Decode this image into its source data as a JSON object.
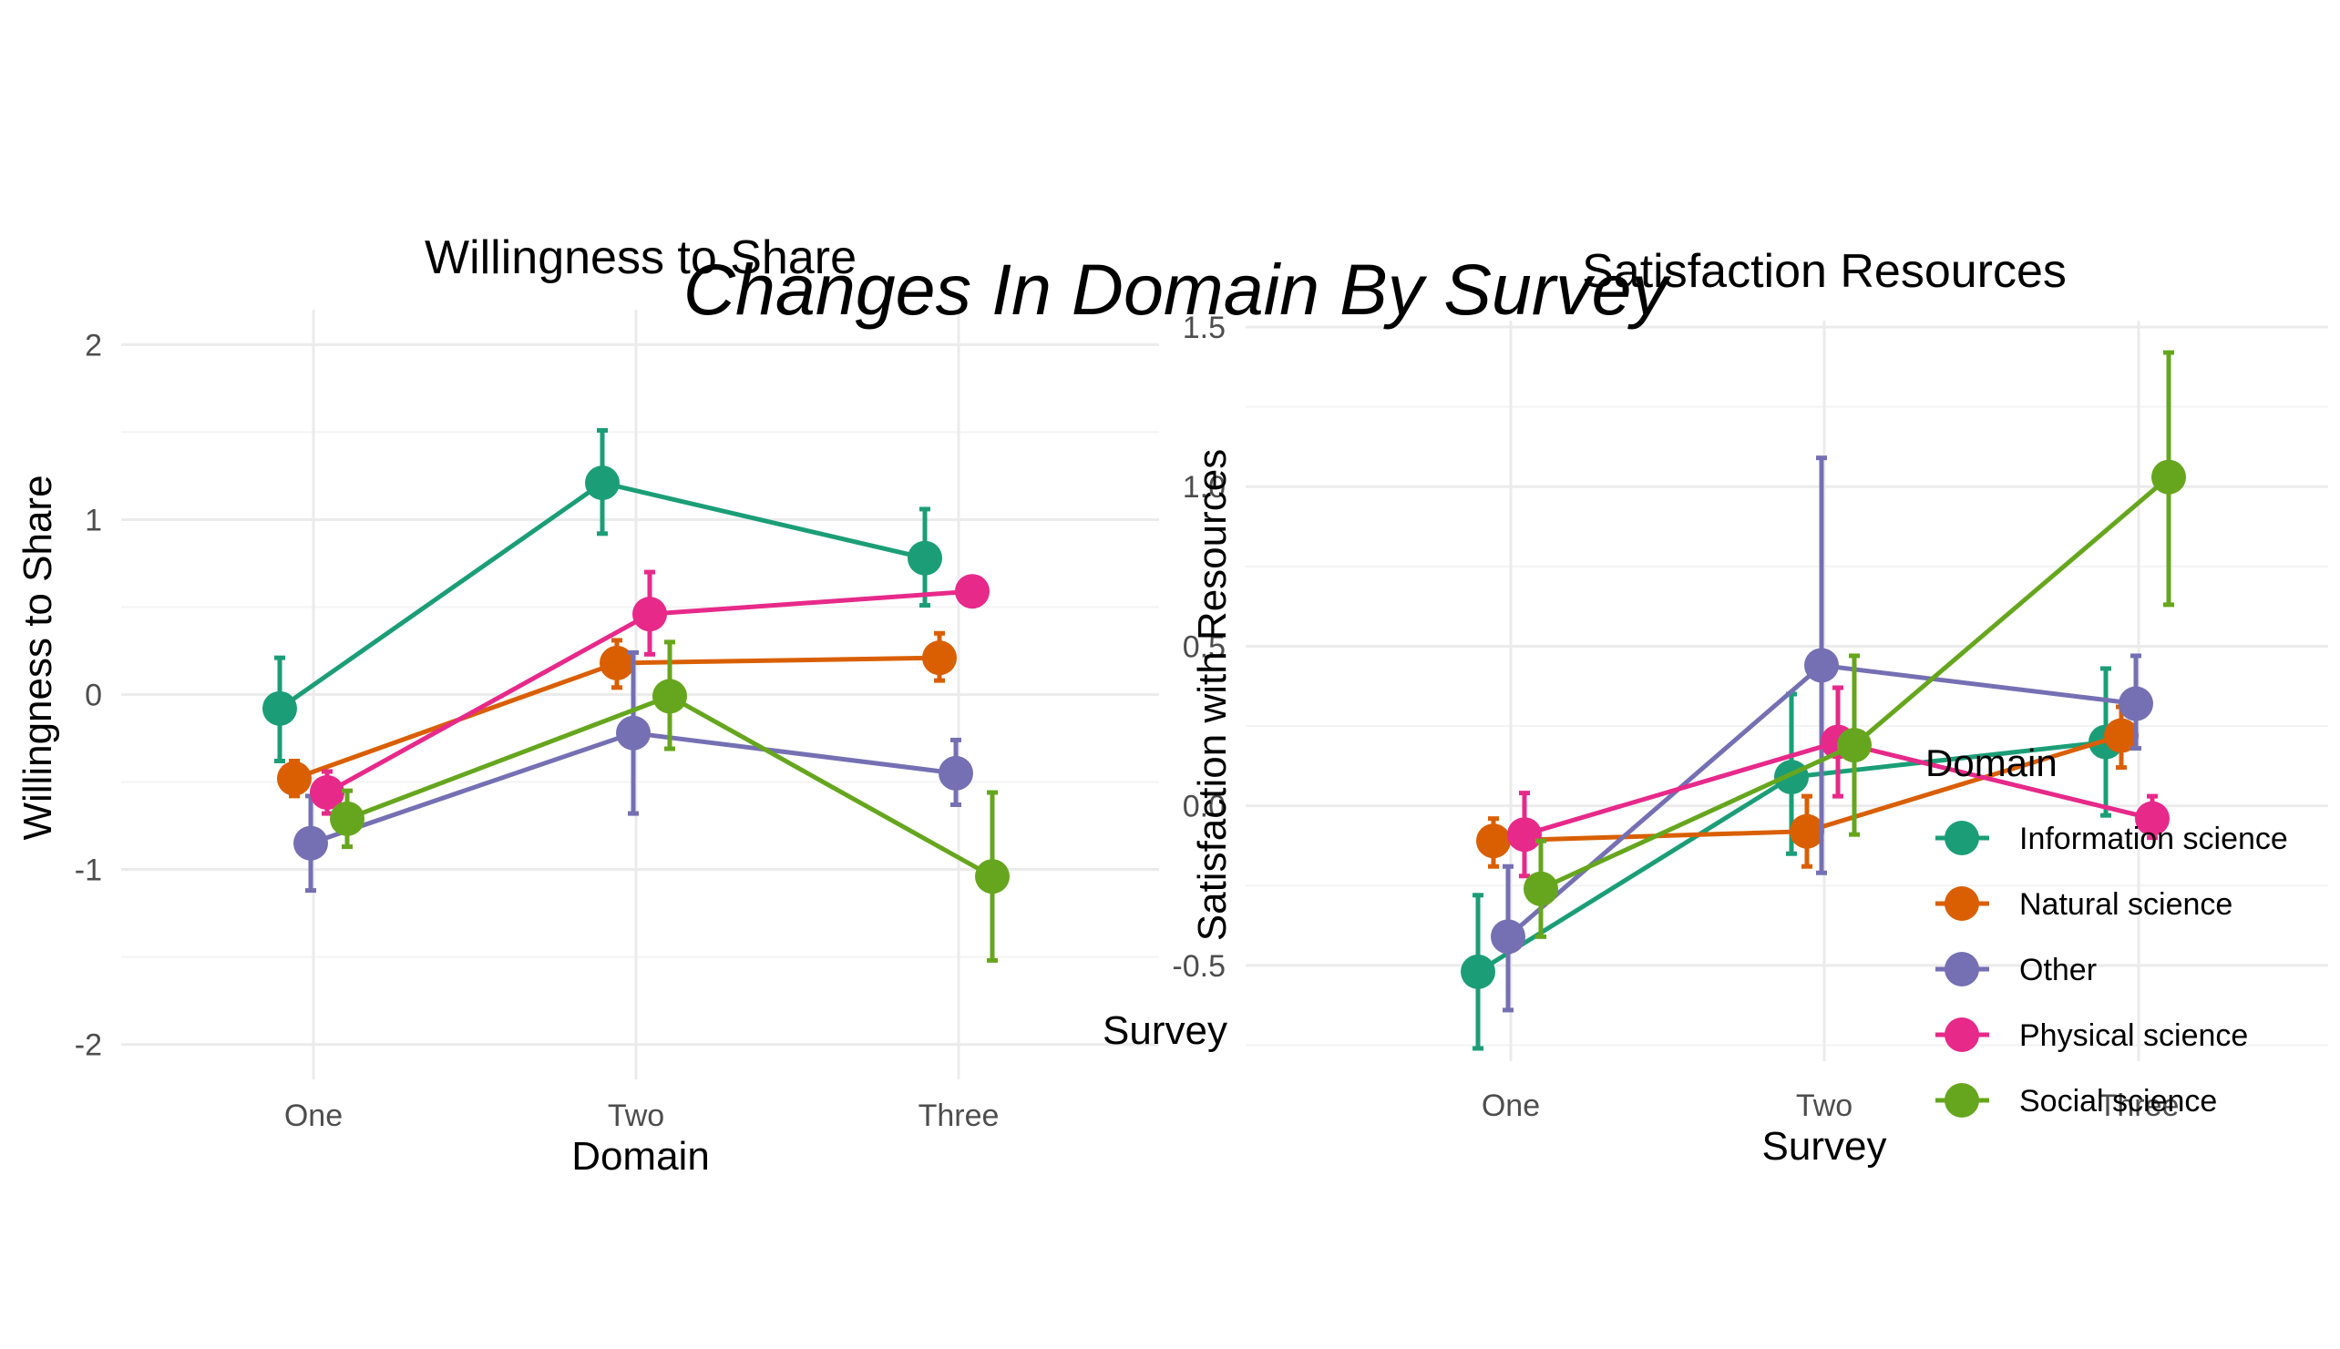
{
  "title": "Changes In Domain By Survey",
  "stray_label": "Survey",
  "colors": {
    "Information science": "#1b9e77",
    "Natural science": "#d95f02",
    "Other": "#7570b3",
    "Physical science": "#e7298a",
    "Social science": "#66a61e"
  },
  "legend": {
    "title": "Domain",
    "items": [
      "Information science",
      "Natural science",
      "Other",
      "Physical science",
      "Social science"
    ]
  },
  "chart_data": [
    {
      "type": "line",
      "title": "Willingness to Share",
      "xlabel": "Domain",
      "ylabel": "Willingness to Share",
      "categories": [
        "One",
        "Two",
        "Three"
      ],
      "ylim": [
        -2.2,
        2.2
      ],
      "yticks": [
        -2,
        -1,
        0,
        1,
        2
      ],
      "ytick_labels": [
        "-2",
        "-1",
        "0",
        "1",
        "2"
      ],
      "grid": true,
      "error_bars": true,
      "series": [
        {
          "name": "Information science",
          "values": [
            -0.08,
            1.21,
            0.78
          ],
          "lower": [
            -0.38,
            0.92,
            0.51
          ],
          "upper": [
            0.21,
            1.51,
            1.06
          ]
        },
        {
          "name": "Natural science",
          "values": [
            -0.48,
            0.18,
            0.21
          ],
          "lower": [
            -0.58,
            0.04,
            0.08
          ],
          "upper": [
            -0.38,
            0.31,
            0.35
          ]
        },
        {
          "name": "Other",
          "values": [
            -0.85,
            -0.22,
            -0.45
          ],
          "lower": [
            -1.12,
            -0.68,
            -0.63
          ],
          "upper": [
            -0.58,
            0.24,
            -0.26
          ]
        },
        {
          "name": "Physical science",
          "values": [
            -0.56,
            0.46,
            0.59
          ],
          "lower": [
            -0.68,
            0.23,
            0.53
          ],
          "upper": [
            -0.44,
            0.7,
            0.65
          ]
        },
        {
          "name": "Social science",
          "values": [
            -0.71,
            -0.01,
            -1.04
          ],
          "lower": [
            -0.87,
            -0.31,
            -1.52
          ],
          "upper": [
            -0.55,
            0.3,
            -0.56
          ]
        }
      ]
    },
    {
      "type": "line",
      "title": "Satisfaction Resources",
      "xlabel": "Survey",
      "ylabel": "Satisfaction with Resources",
      "categories": [
        "One",
        "Two",
        "Three"
      ],
      "ylim": [
        -0.8,
        1.52
      ],
      "yticks": [
        -0.5,
        0.0,
        0.5,
        1.0,
        1.5
      ],
      "ytick_labels": [
        "-0.5",
        "0.0",
        "0.5",
        "1.0",
        "1.5"
      ],
      "grid": true,
      "error_bars": true,
      "legend_position": "right",
      "series": [
        {
          "name": "Information science",
          "values": [
            -0.52,
            0.09,
            0.2
          ],
          "lower": [
            -0.76,
            -0.15,
            -0.03
          ],
          "upper": [
            -0.28,
            0.35,
            0.43
          ]
        },
        {
          "name": "Natural science",
          "values": [
            -0.11,
            -0.08,
            0.22
          ],
          "lower": [
            -0.19,
            -0.19,
            0.12
          ],
          "upper": [
            -0.04,
            0.03,
            0.31
          ]
        },
        {
          "name": "Other",
          "values": [
            -0.41,
            0.44,
            0.32
          ],
          "lower": [
            -0.64,
            -0.21,
            0.18
          ],
          "upper": [
            -0.19,
            1.09,
            0.47
          ]
        },
        {
          "name": "Physical science",
          "values": [
            -0.09,
            0.2,
            -0.04
          ],
          "lower": [
            -0.22,
            0.03,
            -0.1
          ],
          "upper": [
            0.04,
            0.37,
            0.03
          ]
        },
        {
          "name": "Social science",
          "values": [
            -0.26,
            0.19,
            1.03
          ],
          "lower": [
            -0.41,
            -0.09,
            0.63
          ],
          "upper": [
            -0.11,
            0.47,
            1.42
          ]
        }
      ]
    }
  ]
}
